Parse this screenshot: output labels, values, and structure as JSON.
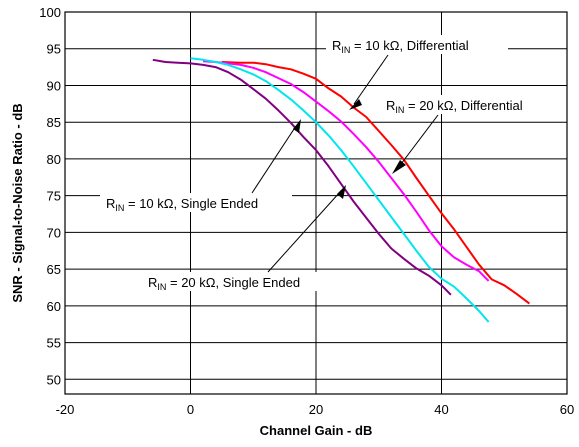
{
  "chart_data": {
    "type": "line",
    "xlabel": "Channel Gain - dB",
    "ylabel": "SNR - Signal-to-Noise Ratio - dB",
    "xlim": [
      -20,
      60
    ],
    "ylim": [
      48,
      100
    ],
    "xticks": [
      -20,
      0,
      20,
      40,
      60
    ],
    "yticks": [
      50,
      55,
      60,
      65,
      70,
      75,
      80,
      85,
      90,
      95,
      100
    ],
    "grid": true,
    "series": [
      {
        "id": "rin10-diff",
        "color": "#ff0000",
        "x": [
          5,
          8,
          10,
          12,
          14,
          16,
          18,
          20,
          22,
          24,
          26,
          28,
          30,
          32,
          34,
          36,
          38,
          40,
          42,
          44,
          46,
          48,
          50,
          52,
          54
        ],
        "y": [
          93.2,
          93.1,
          93.1,
          92.9,
          92.5,
          92.2,
          91.6,
          90.9,
          89.6,
          88.5,
          87.0,
          85.7,
          83.8,
          81.9,
          79.9,
          77.4,
          75.0,
          72.6,
          70.4,
          68.0,
          65.6,
          63.6,
          62.8,
          61.6,
          60.3
        ]
      },
      {
        "id": "rin20-diff",
        "color": "#ff00ff",
        "x": [
          2,
          4,
          6,
          8,
          10,
          12,
          14,
          16,
          18,
          20,
          22,
          24,
          26,
          28,
          30,
          32,
          34,
          36,
          38,
          40,
          42,
          44,
          46,
          47.5
        ],
        "y": [
          93.3,
          93.2,
          93.0,
          92.8,
          92.4,
          91.8,
          91.0,
          90.2,
          89.1,
          87.8,
          86.5,
          85.1,
          83.4,
          81.6,
          79.6,
          77.4,
          75.2,
          72.8,
          70.3,
          68.1,
          66.6,
          65.6,
          64.7,
          63.4
        ]
      },
      {
        "id": "rin10-se",
        "color": "#00e5ee",
        "x": [
          0,
          2,
          4,
          6,
          8,
          10,
          12,
          14,
          16,
          18,
          20,
          22,
          24,
          26,
          28,
          30,
          32,
          34,
          36,
          38,
          40,
          42,
          44,
          46,
          47.5
        ],
        "y": [
          93.7,
          93.5,
          93.2,
          92.8,
          92.2,
          91.5,
          90.6,
          89.4,
          88.1,
          86.6,
          85.0,
          83.2,
          81.2,
          79.0,
          76.7,
          74.4,
          72.1,
          69.8,
          67.5,
          65.3,
          63.7,
          62.6,
          61.0,
          59.3,
          57.8
        ]
      },
      {
        "id": "rin20-se",
        "color": "#800080",
        "x": [
          -6,
          -4,
          -2,
          0,
          2,
          4,
          6,
          8,
          10,
          12,
          14,
          16,
          18,
          20,
          22,
          24,
          26,
          28,
          30,
          32,
          34,
          36,
          38,
          40,
          41.5
        ],
        "y": [
          93.5,
          93.2,
          93.1,
          93.0,
          92.8,
          92.5,
          91.8,
          90.8,
          89.5,
          88.2,
          86.6,
          84.9,
          83.0,
          81.2,
          79.0,
          76.6,
          74.2,
          72.0,
          69.8,
          67.8,
          66.4,
          65.1,
          64.1,
          62.8,
          61.5
        ]
      }
    ],
    "annotations": [
      {
        "id": "ann-rin10-diff",
        "main": "R",
        "sub": "IN",
        "rest": " = 10 kΩ, Differential"
      },
      {
        "id": "ann-rin20-diff",
        "main": "R",
        "sub": "IN",
        "rest": " = 20 kΩ, Differential"
      },
      {
        "id": "ann-rin10-se",
        "main": "R",
        "sub": "IN",
        "rest": " = 10 kΩ, Single Ended"
      },
      {
        "id": "ann-rin20-se",
        "main": "R",
        "sub": "IN",
        "rest": " = 20 kΩ, Single Ended"
      }
    ]
  }
}
